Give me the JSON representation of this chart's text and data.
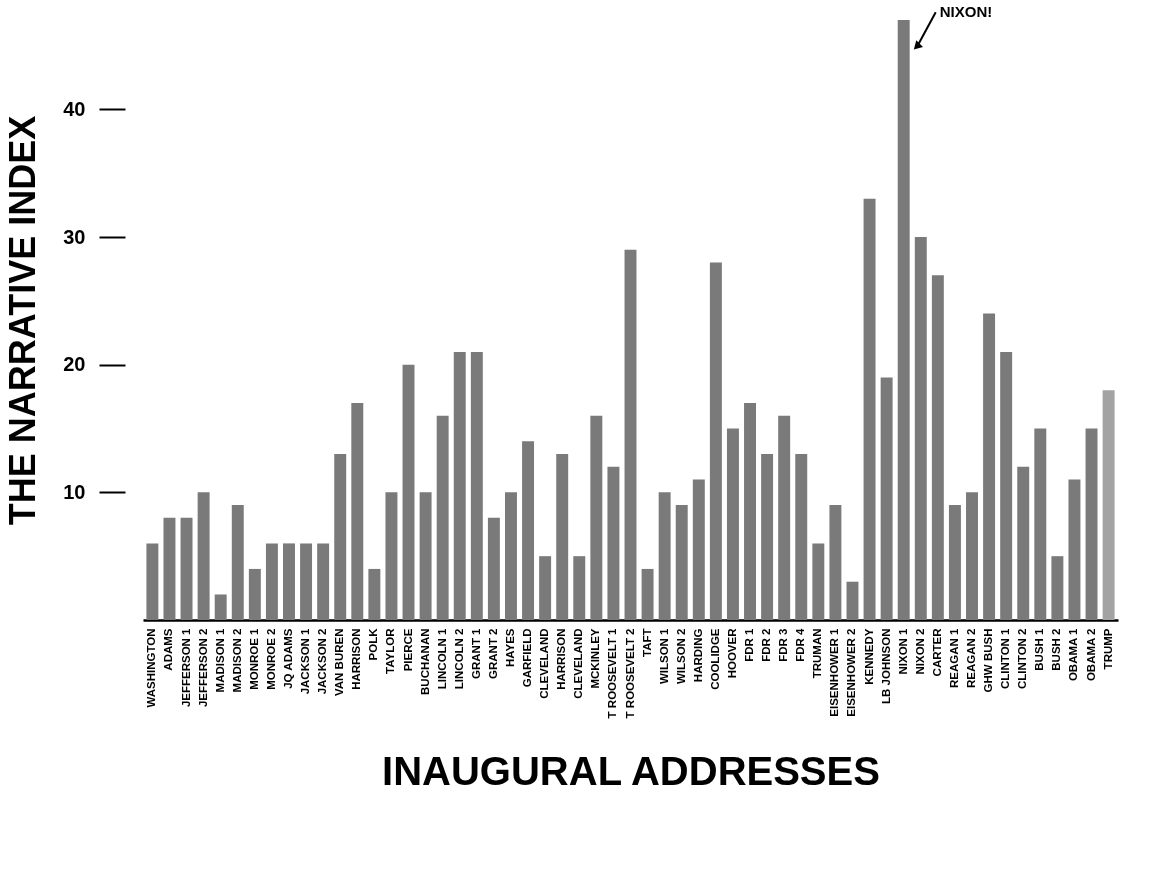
{
  "chart_data": {
    "type": "bar",
    "xlabel": "INAUGURAL ADDRESSES",
    "ylabel": "THE NARRATIVE INDEX",
    "categories": [
      "WASHINGTON",
      "ADAMS",
      "JEFFERSON 1",
      "JEFFERSON 2",
      "MADISON 1",
      "MADISON 2",
      "MONROE 1",
      "MONROE 2",
      "JQ ADAMS",
      "JACKSON 1",
      "JACKSON 2",
      "VAN BUREN",
      "HARRISON",
      "POLK",
      "TAYLOR",
      "PIERCE",
      "BUCHANAN",
      "LINCOLN 1",
      "LINCOLN 2",
      "GRANT 1",
      "GRANT 2",
      "HAYES",
      "GARFIELD",
      "CLEVELAND",
      "HARRISON",
      "CLEVELAND",
      "MCKINLEY",
      "T ROOSEVELT 1",
      "T ROOSEVELT 2",
      "TAFT",
      "WILSON 1",
      "WILSON 2",
      "HARDING",
      "COOLIDGE",
      "HOOVER",
      "FDR 1",
      "FDR 2",
      "FDR 3",
      "FDR 4",
      "TRUMAN",
      "EISENHOWER 1",
      "EISENHOWER 2",
      "KENNEDY",
      "LB JOHNSON",
      "NIXON 1",
      "NIXON 2",
      "CARTER",
      "REAGAN 1",
      "REAGAN 2",
      "GHW BUSH",
      "CLINTON 1",
      "CLINTON 2",
      "BUSH 1",
      "BUSH 2",
      "OBAMA 1",
      "OBAMA 2",
      "TRUMP"
    ],
    "values": [
      6,
      8,
      8,
      10,
      2,
      9,
      4,
      6,
      6,
      6,
      6,
      13,
      17,
      4,
      10,
      20,
      10,
      16,
      21,
      21,
      8,
      10,
      14,
      5,
      13,
      5,
      16,
      12,
      29,
      4,
      10,
      9,
      11,
      28,
      15,
      17,
      13,
      16,
      13,
      6,
      9,
      3,
      33,
      19,
      47,
      30,
      27,
      9,
      10,
      24,
      21,
      12,
      15,
      5,
      11,
      15,
      18
    ],
    "colors": [
      "#7a7a7a",
      "#7a7a7a",
      "#7a7a7a",
      "#7a7a7a",
      "#7a7a7a",
      "#7a7a7a",
      "#7a7a7a",
      "#7a7a7a",
      "#7a7a7a",
      "#7a7a7a",
      "#7a7a7a",
      "#7a7a7a",
      "#7a7a7a",
      "#7a7a7a",
      "#7a7a7a",
      "#7a7a7a",
      "#7a7a7a",
      "#7a7a7a",
      "#7a7a7a",
      "#7a7a7a",
      "#7a7a7a",
      "#7a7a7a",
      "#7a7a7a",
      "#7a7a7a",
      "#7a7a7a",
      "#7a7a7a",
      "#7a7a7a",
      "#7a7a7a",
      "#7a7a7a",
      "#7a7a7a",
      "#7a7a7a",
      "#7a7a7a",
      "#7a7a7a",
      "#7a7a7a",
      "#7a7a7a",
      "#7a7a7a",
      "#7a7a7a",
      "#7a7a7a",
      "#7a7a7a",
      "#7a7a7a",
      "#7a7a7a",
      "#7a7a7a",
      "#7a7a7a",
      "#7a7a7a",
      "#7a7a7a",
      "#7a7a7a",
      "#7a7a7a",
      "#7a7a7a",
      "#7a7a7a",
      "#7a7a7a",
      "#7a7a7a",
      "#7a7a7a",
      "#7a7a7a",
      "#7a7a7a",
      "#7a7a7a",
      "#7a7a7a",
      "#a3a3a3"
    ],
    "ylim": [
      0,
      47
    ],
    "yticks": [
      10,
      20,
      30,
      40
    ],
    "grid": false,
    "annotations": [
      {
        "text": "NIXON!",
        "x": "NIXON 1",
        "y": 45
      }
    ]
  }
}
